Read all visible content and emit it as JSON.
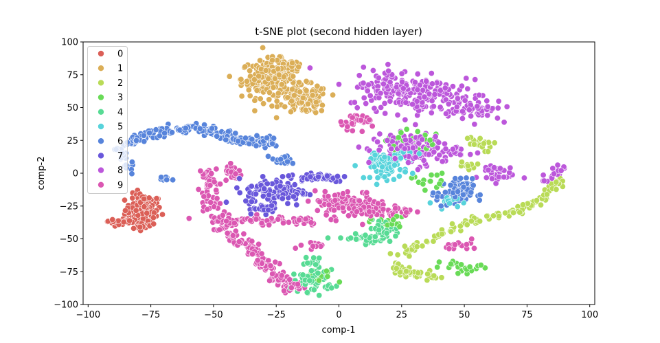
{
  "chart_data": {
    "type": "scatter",
    "title": "t-SNE plot (second hidden layer)",
    "xlabel": "comp-1",
    "ylabel": "comp-2",
    "xlim": [
      -102,
      102
    ],
    "ylim": [
      -100,
      100
    ],
    "xticks": [
      -100,
      -75,
      -50,
      -25,
      0,
      25,
      50,
      75,
      100
    ],
    "yticks": [
      -100,
      -75,
      -50,
      -25,
      0,
      25,
      50,
      75,
      100
    ],
    "legend_position": "top-left",
    "grid": false,
    "series": [
      {
        "name": "0",
        "color": "#db5f57",
        "clusters": [
          {
            "shape": "blob",
            "cx": -78,
            "cy": -28,
            "rx": 6,
            "ry": 10,
            "n": 110
          },
          {
            "shape": "path",
            "points": [
              [
                -92,
                -37
              ],
              [
                -85,
                -37
              ],
              [
                -80,
                -39
              ],
              [
                -76,
                -40
              ]
            ],
            "spread": 1.5,
            "n": 50
          }
        ]
      },
      {
        "name": "1",
        "color": "#dbae57",
        "clusters": [
          {
            "shape": "blob",
            "cx": -28,
            "cy": 72,
            "rx": 9,
            "ry": 12,
            "n": 190
          },
          {
            "shape": "blob",
            "cx": -14,
            "cy": 56,
            "rx": 8,
            "ry": 9,
            "n": 120
          },
          {
            "shape": "blob",
            "cx": -20,
            "cy": 82,
            "rx": 5,
            "ry": 3,
            "n": 30
          }
        ]
      },
      {
        "name": "2",
        "color": "#b9db57",
        "clusters": [
          {
            "shape": "path",
            "points": [
              [
                23,
                -63
              ],
              [
                32,
                -55
              ],
              [
                42,
                -45
              ],
              [
                55,
                -36
              ],
              [
                68,
                -30
              ],
              [
                80,
                -22
              ],
              [
                88,
                -5
              ]
            ],
            "spread": 1.5,
            "n": 110
          },
          {
            "shape": "path",
            "points": [
              [
                23,
                -70
              ],
              [
                27,
                -77
              ],
              [
                40,
                -78
              ]
            ],
            "spread": 1.5,
            "n": 50
          },
          {
            "shape": "blob",
            "cx": 55,
            "cy": 22,
            "rx": 5,
            "ry": 5,
            "n": 20
          },
          {
            "shape": "blob",
            "cx": 52,
            "cy": 5,
            "rx": 3,
            "ry": 3,
            "n": 10
          }
        ]
      },
      {
        "name": "3",
        "color": "#69db57",
        "clusters": [
          {
            "shape": "blob",
            "cx": 28,
            "cy": 25,
            "rx": 8,
            "ry": 8,
            "n": 25
          },
          {
            "shape": "blob",
            "cx": 36,
            "cy": -5,
            "rx": 6,
            "ry": 6,
            "n": 15
          },
          {
            "shape": "blob",
            "cx": 20,
            "cy": -38,
            "rx": 6,
            "ry": 4,
            "n": 20
          },
          {
            "shape": "blob",
            "cx": 50,
            "cy": -72,
            "rx": 8,
            "ry": 5,
            "n": 20
          },
          {
            "shape": "blob",
            "cx": -8,
            "cy": -80,
            "rx": 6,
            "ry": 5,
            "n": 20
          }
        ]
      },
      {
        "name": "4",
        "color": "#57db94",
        "clusters": [
          {
            "shape": "blob",
            "cx": -10,
            "cy": -82,
            "rx": 7,
            "ry": 7,
            "n": 60
          },
          {
            "shape": "blob",
            "cx": 10,
            "cy": -50,
            "rx": 8,
            "ry": 3,
            "n": 40
          },
          {
            "shape": "blob",
            "cx": 18,
            "cy": -42,
            "rx": 5,
            "ry": 5,
            "n": 30
          },
          {
            "shape": "blob",
            "cx": -10,
            "cy": -68,
            "rx": 3,
            "ry": 4,
            "n": 15
          }
        ]
      },
      {
        "name": "5",
        "color": "#57d3db",
        "clusters": [
          {
            "shape": "blob",
            "cx": 20,
            "cy": 5,
            "rx": 6,
            "ry": 8,
            "n": 60
          },
          {
            "shape": "blob",
            "cx": 15,
            "cy": 10,
            "rx": 4,
            "ry": 4,
            "n": 20
          },
          {
            "shape": "blob",
            "cx": 26,
            "cy": 15,
            "rx": 5,
            "ry": 5,
            "n": 20
          },
          {
            "shape": "blob",
            "cx": 45,
            "cy": -22,
            "rx": 6,
            "ry": 4,
            "n": 15
          }
        ]
      },
      {
        "name": "6",
        "color": "#5784db",
        "clusters": [
          {
            "shape": "path",
            "points": [
              [
                -85,
                22
              ],
              [
                -75,
                30
              ],
              [
                -65,
                33
              ],
              [
                -55,
                34
              ],
              [
                -48,
                30
              ],
              [
                -42,
                26
              ],
              [
                -35,
                24
              ],
              [
                -25,
                23
              ]
            ],
            "spread": 1.8,
            "n": 200
          },
          {
            "shape": "path",
            "points": [
              [
                -88,
                20
              ],
              [
                -86,
                10
              ],
              [
                -82,
                0
              ]
            ],
            "spread": 1.5,
            "n": 20
          },
          {
            "shape": "blob",
            "cx": 46,
            "cy": -15,
            "rx": 6,
            "ry": 9,
            "n": 80
          },
          {
            "shape": "blob",
            "cx": -22,
            "cy": 10,
            "rx": 4,
            "ry": 3,
            "n": 20
          },
          {
            "shape": "blob",
            "cx": -70,
            "cy": -5,
            "rx": 3,
            "ry": 2,
            "n": 10
          }
        ]
      },
      {
        "name": "7",
        "color": "#6957db",
        "clusters": [
          {
            "shape": "blob",
            "cx": -25,
            "cy": -14,
            "rx": 10,
            "ry": 9,
            "n": 110
          },
          {
            "shape": "blob",
            "cx": -8,
            "cy": -3,
            "rx": 10,
            "ry": 3,
            "n": 50
          },
          {
            "shape": "blob",
            "cx": -30,
            "cy": -27,
            "rx": 5,
            "ry": 3,
            "n": 20
          }
        ]
      },
      {
        "name": "8",
        "color": "#bc57db",
        "clusters": [
          {
            "shape": "blob",
            "cx": 25,
            "cy": 65,
            "rx": 18,
            "ry": 12,
            "n": 160
          },
          {
            "shape": "blob",
            "cx": 40,
            "cy": 55,
            "rx": 15,
            "ry": 10,
            "n": 80
          },
          {
            "shape": "blob",
            "cx": 30,
            "cy": 18,
            "rx": 15,
            "ry": 10,
            "n": 140
          },
          {
            "shape": "blob",
            "cx": 55,
            "cy": 48,
            "rx": 8,
            "ry": 6,
            "n": 40
          },
          {
            "shape": "blob",
            "cx": 62,
            "cy": 0,
            "rx": 6,
            "ry": 6,
            "n": 30
          },
          {
            "shape": "path",
            "points": [
              [
                82,
                -5
              ],
              [
                86,
                0
              ],
              [
                89,
                5
              ]
            ],
            "spread": 1.2,
            "n": 20
          }
        ]
      },
      {
        "name": "9",
        "color": "#db57b2",
        "clusters": [
          {
            "shape": "path",
            "points": [
              [
                -52,
                2
              ],
              [
                -52,
                -15
              ],
              [
                -48,
                -35
              ],
              [
                -42,
                -48
              ],
              [
                -34,
                -58
              ],
              [
                -28,
                -72
              ],
              [
                -22,
                -84
              ],
              [
                -16,
                -88
              ]
            ],
            "spread": 2.2,
            "n": 200
          },
          {
            "shape": "blob",
            "cx": -28,
            "cy": -36,
            "rx": 18,
            "ry": 3,
            "n": 60
          },
          {
            "shape": "blob",
            "cx": 5,
            "cy": -24,
            "rx": 12,
            "ry": 8,
            "n": 110
          },
          {
            "shape": "blob",
            "cx": 20,
            "cy": -30,
            "rx": 8,
            "ry": 4,
            "n": 40
          },
          {
            "shape": "blob",
            "cx": 8,
            "cy": 40,
            "rx": 6,
            "ry": 5,
            "n": 30
          },
          {
            "shape": "blob",
            "cx": 50,
            "cy": -55,
            "rx": 6,
            "ry": 3,
            "n": 15
          },
          {
            "shape": "blob",
            "cx": -10,
            "cy": -56,
            "rx": 6,
            "ry": 2,
            "n": 15
          },
          {
            "shape": "blob",
            "cx": -42,
            "cy": 0,
            "rx": 3,
            "ry": 5,
            "n": 20
          }
        ]
      }
    ]
  }
}
